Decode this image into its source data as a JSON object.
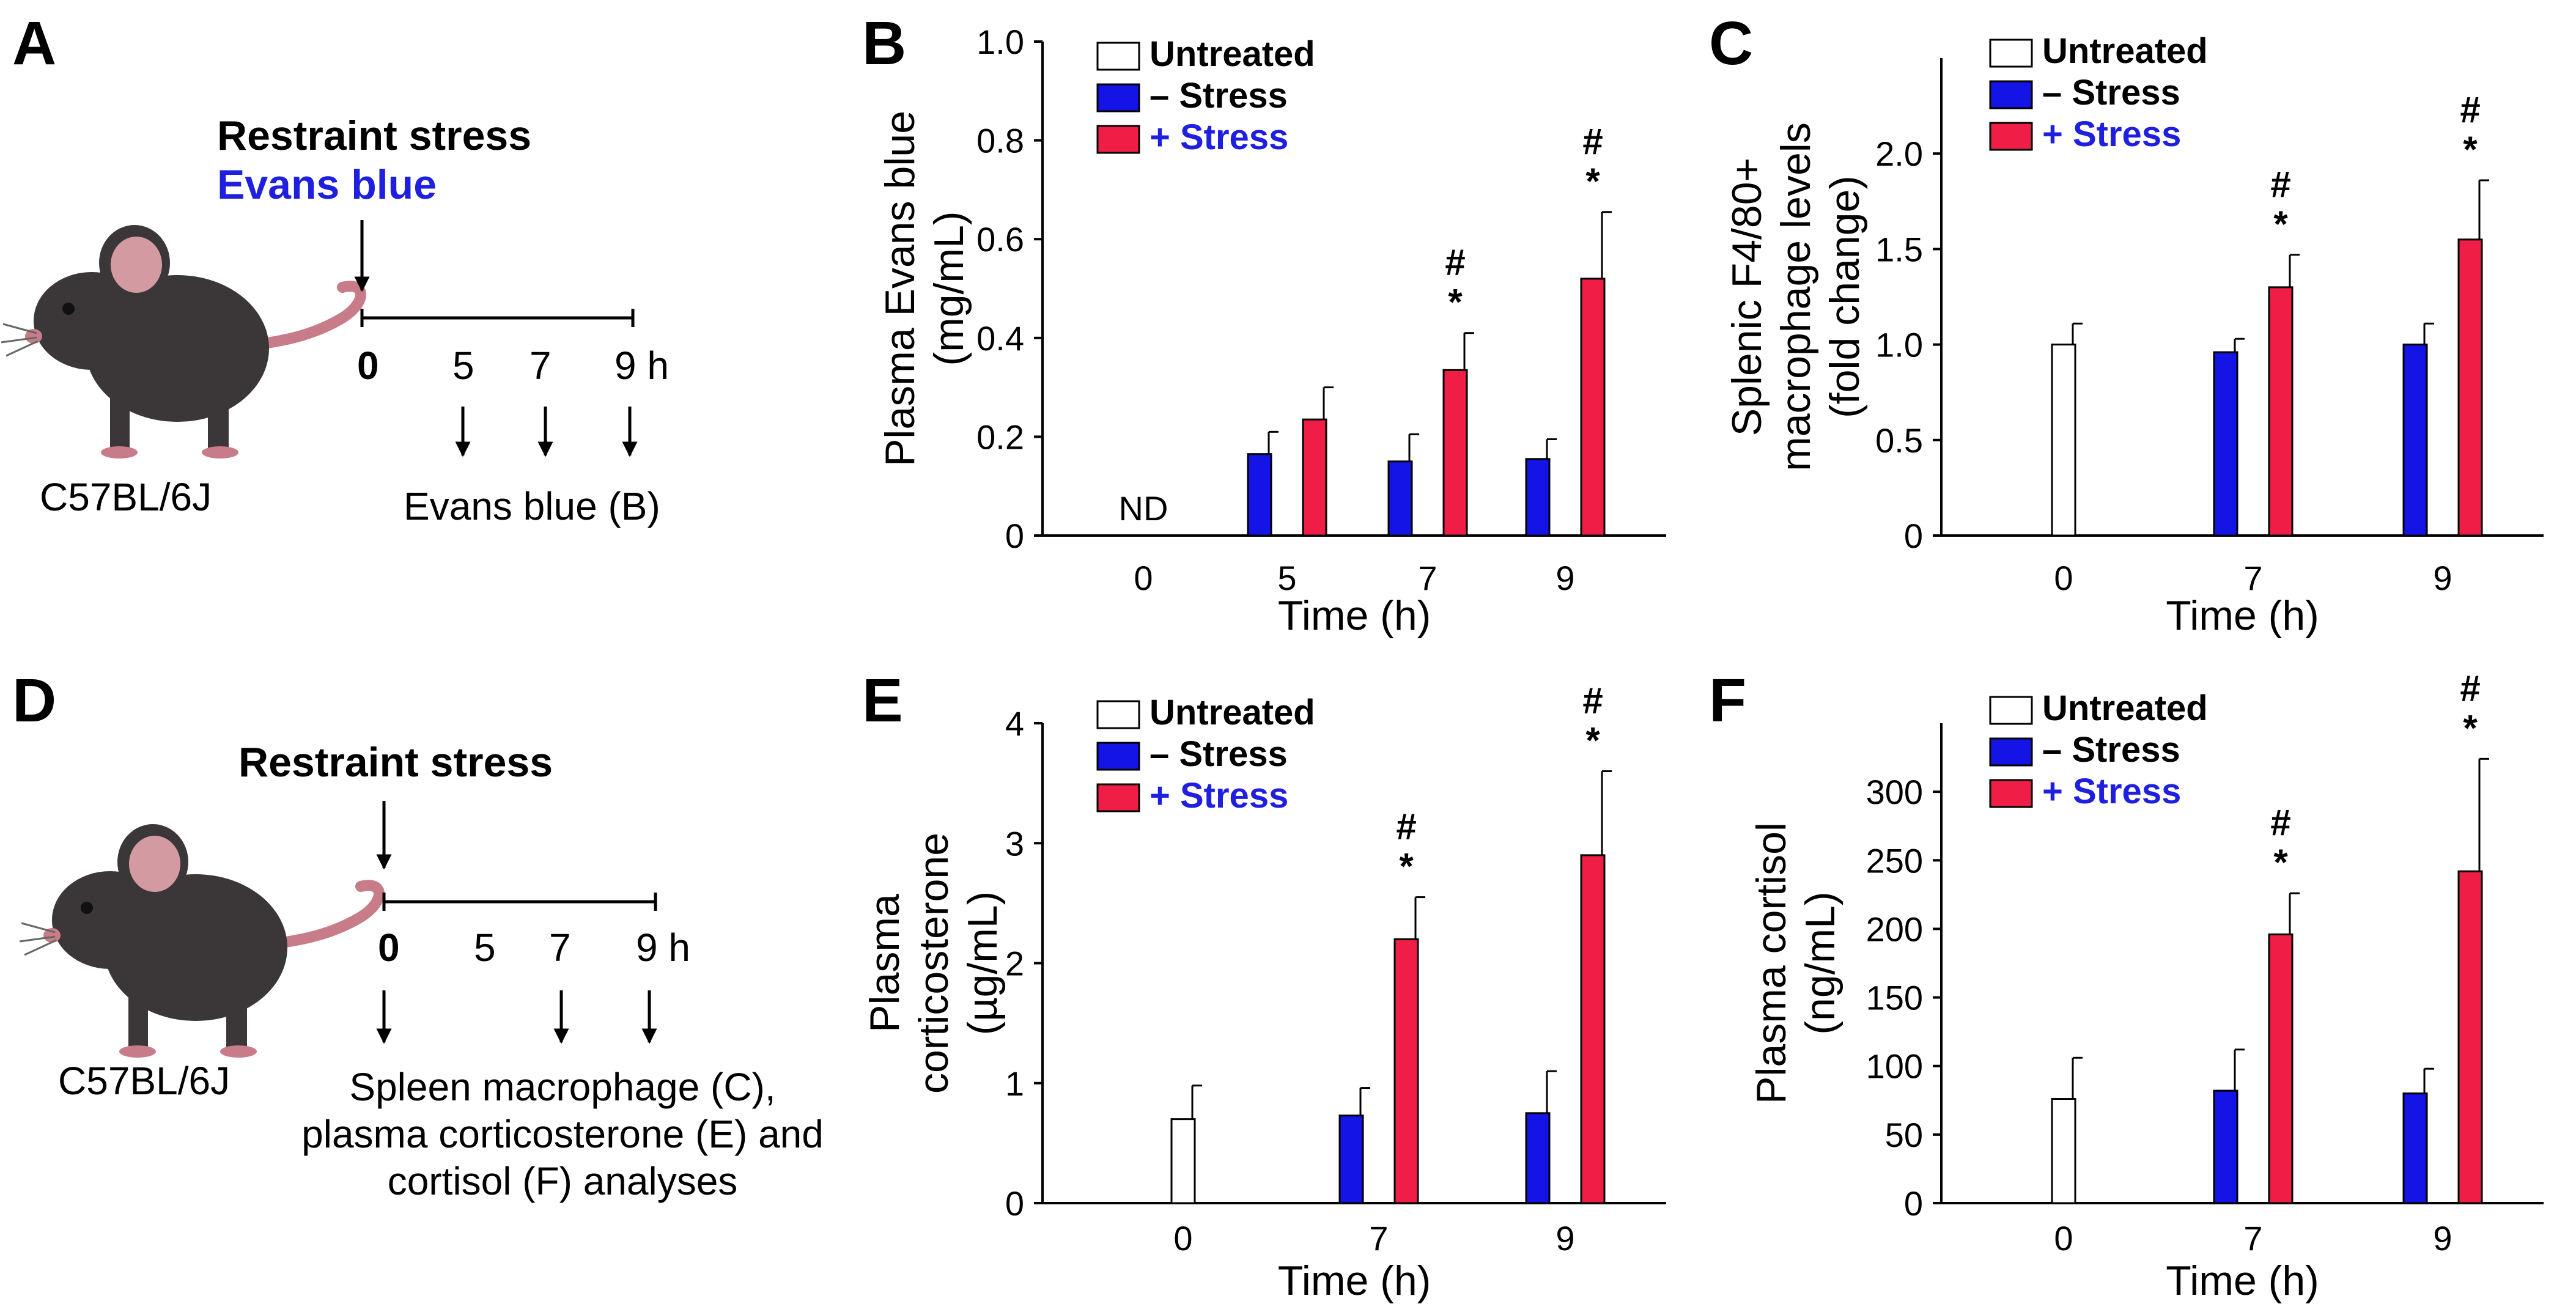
{
  "panels": {
    "A": "A",
    "B": "B",
    "C": "C",
    "D": "D",
    "E": "E",
    "F": "F"
  },
  "colors": {
    "untreated": "#ffffff",
    "minus_stress": "#1414e6",
    "plus_stress": "#f01e46",
    "evans_label": "#1f1fe0",
    "plus_stress_label": "#1f1fe0"
  },
  "legend": {
    "untreated": "Untreated",
    "minus_stress": "– Stress",
    "plus_stress": "+ Stress"
  },
  "schematic_a": {
    "title": "Restraint stress",
    "subtitle": "Evans blue",
    "timepoints": [
      "0",
      "5",
      "7",
      "9 h"
    ],
    "strain": "C57BL/6J",
    "readout": "Evans blue (B)"
  },
  "schematic_d": {
    "title": "Restraint stress",
    "timepoints": [
      "0",
      "5",
      "7",
      "9 h"
    ],
    "strain": "C57BL/6J",
    "readout_lines": [
      "Spleen macrophage (C),",
      "plasma corticosterone (E) and",
      "cortisol (F) analyses"
    ]
  },
  "chart_data": [
    {
      "panel": "B",
      "type": "bar",
      "xlabel": "Time (h)",
      "ylabel_lines": [
        "Plasma Evans blue",
        "(mg/mL)"
      ],
      "categories": [
        "0",
        "5",
        "7",
        "9"
      ],
      "ylim": [
        0,
        1.0
      ],
      "yticks": [
        "0",
        "0.2",
        "0.4",
        "0.6",
        "0.8",
        "1.0"
      ],
      "ytick_values": [
        0,
        0.2,
        0.4,
        0.6,
        0.8,
        1.0
      ],
      "annotation": "ND",
      "series": [
        {
          "name": "– Stress",
          "key": "minus",
          "values": [
            null,
            0.165,
            0.15,
            0.155
          ],
          "errors": [
            null,
            0.045,
            0.055,
            0.04
          ]
        },
        {
          "name": "+ Stress",
          "key": "plus",
          "values": [
            null,
            0.235,
            0.335,
            0.52
          ],
          "errors": [
            null,
            0.065,
            0.075,
            0.135
          ]
        }
      ],
      "significance": [
        {
          "category": "7",
          "marks": [
            "#",
            "*"
          ]
        },
        {
          "category": "9",
          "marks": [
            "#",
            "*"
          ]
        }
      ]
    },
    {
      "panel": "C",
      "type": "bar",
      "xlabel": "Time (h)",
      "ylabel_lines": [
        "Splenic F4/80+",
        "macrophage levels",
        "(fold change)"
      ],
      "categories": [
        "0",
        "7",
        "9"
      ],
      "ylim": [
        0,
        2.5
      ],
      "yticks": [
        "0",
        "0.5",
        "1.0",
        "1.5",
        "2.0"
      ],
      "ytick_values": [
        0,
        0.5,
        1.0,
        1.5,
        2.0
      ],
      "series": [
        {
          "name": "Untreated",
          "key": "untreated",
          "values": [
            1.0,
            null,
            null
          ],
          "errors": [
            0.11,
            null,
            null
          ]
        },
        {
          "name": "– Stress",
          "key": "minus",
          "values": [
            null,
            0.96,
            1.0
          ],
          "errors": [
            null,
            0.07,
            0.11
          ]
        },
        {
          "name": "+ Stress",
          "key": "plus",
          "values": [
            null,
            1.3,
            1.55
          ],
          "errors": [
            null,
            0.17,
            0.31
          ]
        }
      ],
      "significance": [
        {
          "category": "7",
          "marks": [
            "#",
            "*"
          ]
        },
        {
          "category": "9",
          "marks": [
            "#",
            "*"
          ]
        }
      ]
    },
    {
      "panel": "E",
      "type": "bar",
      "xlabel": "Time (h)",
      "ylabel_lines": [
        "Plasma",
        "corticosterone",
        "(µg/mL)"
      ],
      "categories": [
        "0",
        "7",
        "9"
      ],
      "ylim": [
        0,
        4
      ],
      "yticks": [
        "0",
        "1",
        "2",
        "3",
        "4"
      ],
      "ytick_values": [
        0,
        1,
        2,
        3,
        4
      ],
      "series": [
        {
          "name": "Untreated",
          "key": "untreated",
          "values": [
            0.7,
            null,
            null
          ],
          "errors": [
            0.28,
            null,
            null
          ]
        },
        {
          "name": "– Stress",
          "key": "minus",
          "values": [
            null,
            0.73,
            0.75
          ],
          "errors": [
            null,
            0.23,
            0.35
          ]
        },
        {
          "name": "+ Stress",
          "key": "plus",
          "values": [
            null,
            2.2,
            2.9
          ],
          "errors": [
            null,
            0.35,
            0.7
          ]
        }
      ],
      "significance": [
        {
          "category": "7",
          "marks": [
            "#",
            "*"
          ]
        },
        {
          "category": "9",
          "marks": [
            "#",
            "*"
          ]
        }
      ]
    },
    {
      "panel": "F",
      "type": "bar",
      "xlabel": "Time (h)",
      "ylabel_lines": [
        "Plasma cortisol",
        "(ng/mL)"
      ],
      "categories": [
        "0",
        "7",
        "9"
      ],
      "ylim": [
        0,
        350
      ],
      "yticks": [
        "0",
        "50",
        "100",
        "150",
        "200",
        "250",
        "300"
      ],
      "ytick_values": [
        0,
        50,
        100,
        150,
        200,
        250,
        300
      ],
      "series": [
        {
          "name": "Untreated",
          "key": "untreated",
          "values": [
            76,
            null,
            null
          ],
          "errors": [
            30,
            null,
            null
          ]
        },
        {
          "name": "– Stress",
          "key": "minus",
          "values": [
            null,
            82,
            80
          ],
          "errors": [
            null,
            30,
            18
          ]
        },
        {
          "name": "+ Stress",
          "key": "plus",
          "values": [
            null,
            196,
            242
          ],
          "errors": [
            null,
            30,
            82
          ]
        }
      ],
      "significance": [
        {
          "category": "7",
          "marks": [
            "#",
            "*"
          ]
        },
        {
          "category": "9",
          "marks": [
            "#",
            "*"
          ]
        }
      ]
    }
  ]
}
